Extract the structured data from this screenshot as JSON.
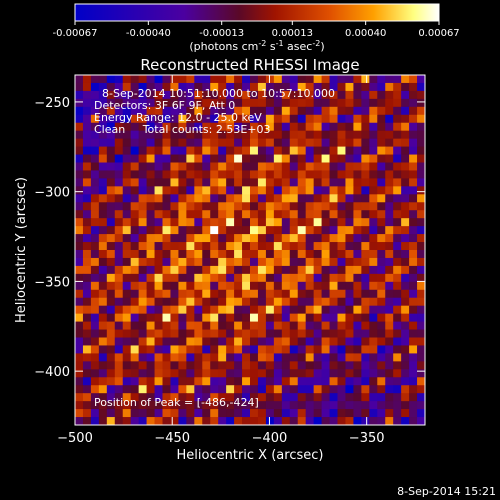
{
  "chart_data": {
    "type": "heatmap",
    "title": "Reconstructed RHESSI Image",
    "colorbar": {
      "ticks": [
        "-0.00067",
        "-0.00040",
        "-0.00013",
        "0.00013",
        "0.00040",
        "0.00067"
      ],
      "tick_values": [
        -0.00067,
        -0.0004,
        -0.00013,
        0.00013,
        0.0004,
        0.00067
      ],
      "range": [
        -0.00067,
        0.00067
      ],
      "unit_label_parts": [
        "(photons cm",
        "-2",
        " s",
        "-1",
        " asec",
        "-2",
        ")"
      ],
      "colors": [
        "#0000c8",
        "#4b00a0",
        "#5a0828",
        "#a01400",
        "#e05000",
        "#ffa000",
        "#ffff80",
        "#ffffff"
      ]
    },
    "xlabel": "Heliocentric X (arcsec)",
    "ylabel": "Heliocentric Y (arcsec)",
    "xlim": [
      -500,
      -320
    ],
    "ylim": [
      -430,
      -235
    ],
    "xticks": [
      -500,
      -450,
      -400,
      -350
    ],
    "xtick_labels": [
      "−500",
      "−450",
      "−400",
      "−350"
    ],
    "yticks": [
      -250,
      -300,
      -350,
      -400
    ],
    "ytick_labels": [
      "−250",
      "−300",
      "−350",
      "−400"
    ],
    "annotations": [
      "8-Sep-2014 10:51:10.000 to 10:57:10.000",
      "Detectors: 3F 6F 9F, Att 0",
      "Energy Range: 12.0 - 25.0 keV",
      "Clean     Total counts: 2.53E+03"
    ],
    "peak_label": "Position of Peak = [-486,-424]",
    "peak": [
      -486,
      -424
    ]
  },
  "footer": {
    "timestamp": "8-Sep-2014 15:21"
  }
}
